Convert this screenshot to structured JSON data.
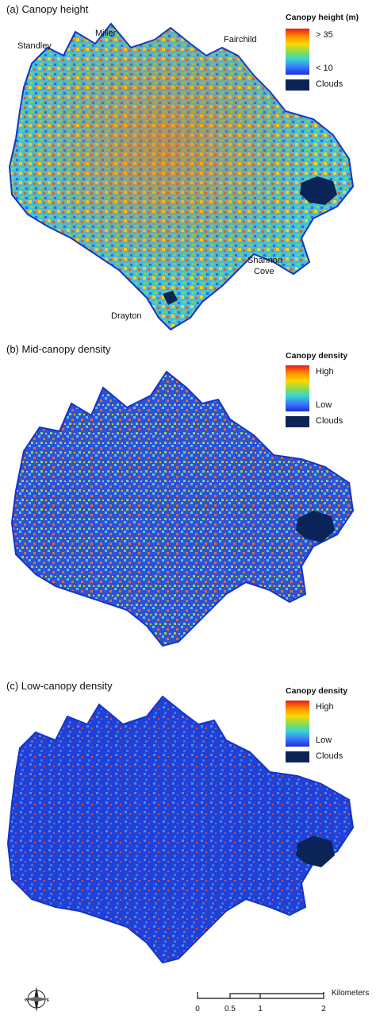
{
  "panels": [
    {
      "title": "(a) Canopy height",
      "legend": {
        "title": "Canopy height (m)",
        "high": "> 35",
        "low": "< 10",
        "clouds": "Clouds"
      },
      "places": [
        "Standley",
        "Miller",
        "Fairchild",
        "Shannon",
        "Cove",
        "Drayton"
      ],
      "colors": {
        "high": "#e31a1c",
        "low": "#1d2fd6",
        "clouds": "#0b2457"
      }
    },
    {
      "title": "(b) Mid-canopy density",
      "legend": {
        "title": "Canopy density",
        "high": "High",
        "low": "Low",
        "clouds": "Clouds"
      }
    },
    {
      "title": "(c) Low-canopy density",
      "legend": {
        "title": "Canopy density",
        "high": "High",
        "low": "Low",
        "clouds": "Clouds"
      }
    }
  ],
  "compass": {
    "west": "W",
    "east": "E",
    "north": "N",
    "south": "S"
  },
  "scale": {
    "ticks": [
      "0",
      "0.5",
      "1",
      "2"
    ],
    "unit": "Kilometers"
  }
}
